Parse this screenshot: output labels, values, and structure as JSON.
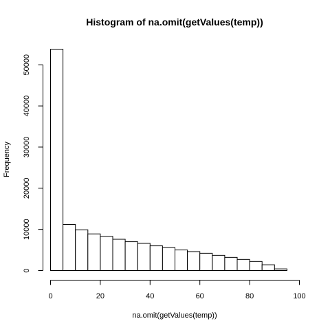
{
  "chart_data": {
    "type": "bar",
    "title": "Histogram of na.omit(getValues(temp))",
    "xlabel": "na.omit(getValues(temp))",
    "ylabel": "Frequency",
    "bin_edges": [
      0,
      5,
      10,
      15,
      20,
      25,
      30,
      35,
      40,
      45,
      50,
      55,
      60,
      65,
      70,
      75,
      80,
      85,
      90,
      95
    ],
    "values": [
      53800,
      11200,
      9900,
      8900,
      8300,
      7600,
      7000,
      6600,
      6000,
      5600,
      5000,
      4600,
      4200,
      3700,
      3200,
      2700,
      2200,
      1400,
      400
    ],
    "xlim": [
      0,
      100
    ],
    "ylim": [
      0,
      53800
    ],
    "x_ticks": [
      0,
      20,
      40,
      60,
      80,
      100
    ],
    "y_ticks": [
      0,
      10000,
      20000,
      30000,
      40000,
      50000
    ],
    "grid": false
  }
}
